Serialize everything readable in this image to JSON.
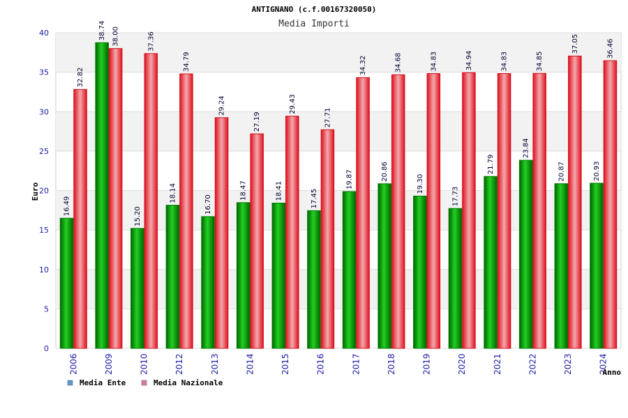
{
  "chart_data": {
    "type": "bar",
    "title": "ANTIGNANO (c.f.00167320050)",
    "subtitle": "Media Importi",
    "xlabel": "Anno",
    "ylabel": "Euro",
    "ylim": [
      0,
      40
    ],
    "yticks": [
      0,
      5,
      10,
      15,
      20,
      25,
      30,
      35,
      40
    ],
    "grid": true,
    "legend_position": "bottom-left",
    "categories": [
      "2006",
      "2009",
      "2010",
      "2012",
      "2013",
      "2014",
      "2015",
      "2016",
      "2017",
      "2018",
      "2019",
      "2020",
      "2021",
      "2022",
      "2023",
      "2024"
    ],
    "series": [
      {
        "name": "Media Ente",
        "color": "#00a800",
        "legend_color": "#5b9bd5",
        "values": [
          16.49,
          38.74,
          15.2,
          18.14,
          16.7,
          18.47,
          18.41,
          17.45,
          19.87,
          20.86,
          19.3,
          17.73,
          21.79,
          23.84,
          20.87,
          20.93
        ],
        "labels": [
          "16.49",
          "38.74",
          "15.20",
          "18.14",
          "16.70",
          "18.47",
          "18.41",
          "17.45",
          "19.87",
          "20.86",
          "19.30",
          "17.73",
          "21.79",
          "23.84",
          "20.87",
          "20.93"
        ]
      },
      {
        "name": "Media Nazionale",
        "color": "#e8202e",
        "legend_color": "#d87aa8",
        "values": [
          32.82,
          38.0,
          37.36,
          34.79,
          29.24,
          27.19,
          29.43,
          27.71,
          34.32,
          34.68,
          34.83,
          34.94,
          34.83,
          34.85,
          37.05,
          36.46
        ],
        "labels": [
          "32.82",
          "38.00",
          "37.36",
          "34.79",
          "29.24",
          "27.19",
          "29.43",
          "27.71",
          "34.32",
          "34.68",
          "34.83",
          "34.94",
          "34.83",
          "34.85",
          "37.05",
          "36.46"
        ]
      }
    ]
  }
}
